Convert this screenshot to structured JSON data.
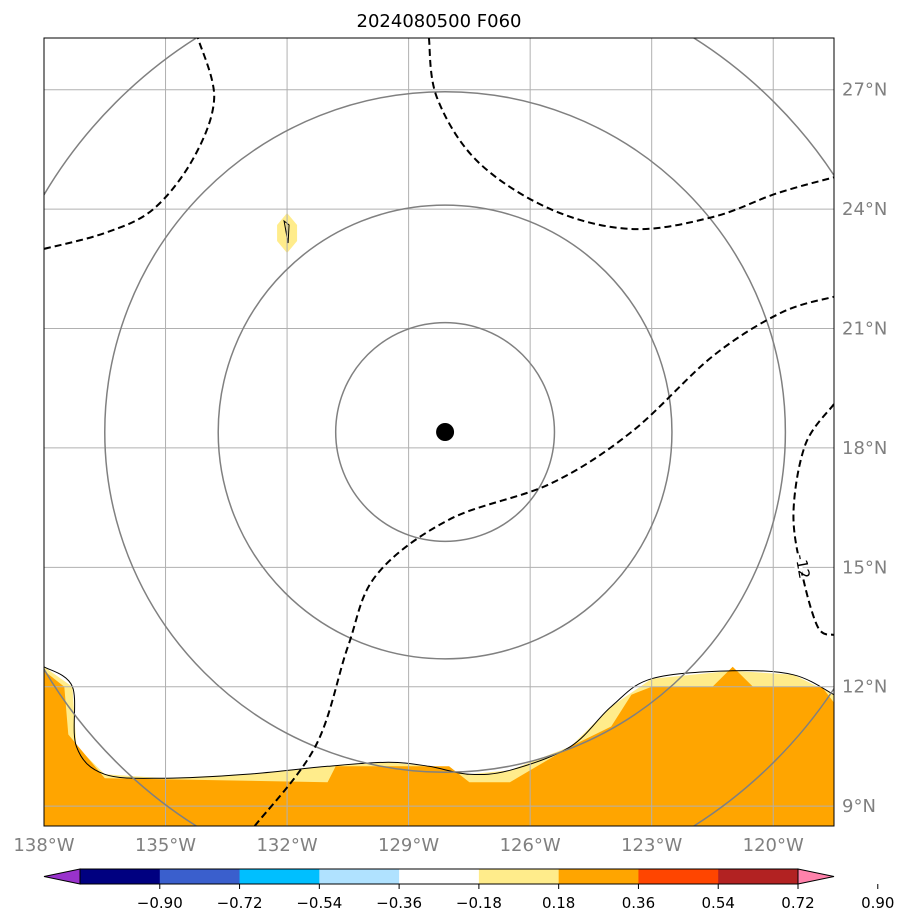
{
  "chart_data": {
    "type": "contour map",
    "title": "2024080500 F060",
    "projection": "lat-lon",
    "xlim": [
      -138,
      -118.5
    ],
    "ylim": [
      8.5,
      28.3
    ],
    "lon_ticks": [
      -138,
      -135,
      -132,
      -129,
      -126,
      -123,
      -120
    ],
    "lon_tick_labels": [
      "138°W",
      "135°W",
      "132°W",
      "129°W",
      "126°W",
      "123°W",
      "120°W"
    ],
    "lat_ticks": [
      9,
      12,
      15,
      18,
      21,
      24,
      27
    ],
    "lat_tick_labels": [
      "9°N",
      "12°N",
      "15°N",
      "18°N",
      "21°N",
      "24°N",
      "27°N"
    ],
    "grid": true,
    "center": {
      "lon": -128.1,
      "lat": 18.4
    },
    "range_ring_radii_deg": [
      2.7,
      5.6,
      8.4,
      11.5
    ],
    "dashed_contours": {
      "labeled_value": -12,
      "lines": [
        [
          [
            -138.0,
            23.0
          ],
          [
            -136.5,
            23.4
          ],
          [
            -135.3,
            24.0
          ],
          [
            -134.3,
            25.3
          ],
          [
            -133.8,
            26.8
          ],
          [
            -134.2,
            28.3
          ]
        ],
        [
          [
            -128.5,
            28.3
          ],
          [
            -128.3,
            26.8
          ],
          [
            -127.3,
            25.2
          ],
          [
            -125.5,
            24.0
          ],
          [
            -123.5,
            23.5
          ],
          [
            -121.5,
            23.8
          ],
          [
            -119.9,
            24.4
          ],
          [
            -118.5,
            24.8
          ]
        ],
        [
          [
            -132.8,
            8.5
          ],
          [
            -131.3,
            10.5
          ],
          [
            -130.5,
            13.0
          ],
          [
            -129.8,
            14.8
          ],
          [
            -128.0,
            16.2
          ],
          [
            -125.5,
            17.1
          ],
          [
            -123.5,
            18.4
          ],
          [
            -121.5,
            20.3
          ],
          [
            -119.8,
            21.4
          ],
          [
            -118.5,
            21.8
          ]
        ],
        [
          [
            -118.5,
            19.1
          ],
          [
            -119.2,
            18.1
          ],
          [
            -119.5,
            16.4
          ],
          [
            -119.3,
            14.9
          ],
          [
            -118.9,
            13.5
          ],
          [
            -118.5,
            13.3
          ]
        ]
      ]
    },
    "filled_contours": {
      "levels": [
        -0.9,
        -0.72,
        -0.54,
        -0.36,
        -0.18,
        0.18,
        0.36,
        0.54,
        0.72,
        0.9
      ],
      "colorbar_labels": [
        "−0.90",
        "−0.72",
        "−0.54",
        "−0.36",
        "−0.18",
        "0.18",
        "0.36",
        "0.54",
        "0.72",
        "0.90"
      ],
      "colors": [
        "#9932cc",
        "#000080",
        "#3a5fcd",
        "#00bfff",
        "#b0e2ff",
        "#ffffff",
        "#ffec8b",
        "#ffa500",
        "#ff4500",
        "#b22222",
        "#ff82ab"
      ],
      "light_region": [
        [
          -138.0,
          12.5
        ],
        [
          -137.3,
          12.0
        ],
        [
          -137.2,
          10.5
        ],
        [
          -136.5,
          9.8
        ],
        [
          -135.0,
          9.7
        ],
        [
          -133.0,
          9.8
        ],
        [
          -131.0,
          10.0
        ],
        [
          -129.5,
          10.1
        ],
        [
          -128.5,
          10.0
        ],
        [
          -127.5,
          9.8
        ],
        [
          -126.5,
          9.9
        ],
        [
          -125.0,
          10.5
        ],
        [
          -124.0,
          11.5
        ],
        [
          -123.0,
          12.2
        ],
        [
          -121.0,
          12.4
        ],
        [
          -119.5,
          12.3
        ],
        [
          -118.5,
          11.8
        ],
        [
          -118.5,
          8.5
        ],
        [
          -138.0,
          8.5
        ]
      ],
      "orange_region": [
        [
          -138.0,
          12.4
        ],
        [
          -137.5,
          12.0
        ],
        [
          -137.4,
          10.8
        ],
        [
          -136.5,
          9.7
        ],
        [
          -131.0,
          9.6
        ],
        [
          -130.8,
          10.0
        ],
        [
          -128.0,
          10.0
        ],
        [
          -127.5,
          9.6
        ],
        [
          -126.5,
          9.6
        ],
        [
          -126.0,
          9.9
        ],
        [
          -125.0,
          10.5
        ],
        [
          -124.0,
          11.0
        ],
        [
          -123.5,
          11.8
        ],
        [
          -123.0,
          12.0
        ],
        [
          -121.5,
          12.0
        ],
        [
          -121.0,
          12.5
        ],
        [
          -120.5,
          12.0
        ],
        [
          -118.8,
          12.0
        ],
        [
          -118.5,
          11.6
        ],
        [
          -118.5,
          8.5
        ],
        [
          -138.0,
          8.5
        ]
      ],
      "small_blob": {
        "lon": -132.0,
        "lat": 23.4
      }
    },
    "contour_label": "-12"
  }
}
